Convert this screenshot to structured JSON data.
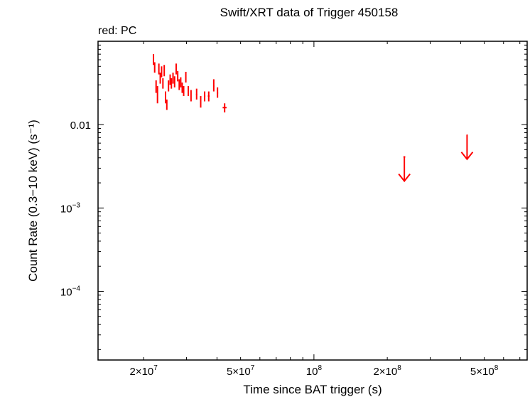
{
  "chart_data": {
    "type": "scatter",
    "title": "Swift/XRT data of Trigger 450158",
    "subtitle": "red: PC",
    "xlabel": "Time since BAT trigger (s)",
    "ylabel": "Count Rate (0.3−10 keV) (s⁻¹)",
    "x_scale": "log",
    "y_scale": "log",
    "xlim": [
      13000000,
      750000000
    ],
    "ylim": [
      1.5e-05,
      0.1
    ],
    "grid": false,
    "colors": {
      "series": "#ff0000",
      "axes": "#000000"
    },
    "x_ticks": [
      {
        "value": 20000000,
        "mantissa": "2×10",
        "exp": "7"
      },
      {
        "value": 50000000,
        "mantissa": "5×10",
        "exp": "7"
      },
      {
        "value": 100000000,
        "mantissa": "10",
        "exp": "8"
      },
      {
        "value": 200000000,
        "mantissa": "2×10",
        "exp": "8"
      },
      {
        "value": 500000000,
        "mantissa": "5×10",
        "exp": "8"
      }
    ],
    "y_ticks": [
      {
        "value": 0.01,
        "mantissa": "0.01",
        "exp": ""
      },
      {
        "value": 0.001,
        "mantissa": "10",
        "exp": "−3"
      },
      {
        "value": 0.0001,
        "mantissa": "10",
        "exp": "−4"
      }
    ],
    "series": [
      {
        "name": "PC",
        "points": [
          {
            "x": 21950000,
            "y": 0.058,
            "xerr": 80000,
            "y_lo": 0.052,
            "y_hi": 0.07
          },
          {
            "x": 22200000,
            "y": 0.048,
            "xerr": 80000,
            "y_lo": 0.042,
            "y_hi": 0.056
          },
          {
            "x": 22500000,
            "y": 0.028,
            "xerr": 80000,
            "y_lo": 0.024,
            "y_hi": 0.034
          },
          {
            "x": 22800000,
            "y": 0.024,
            "xerr": 80000,
            "y_lo": 0.018,
            "y_hi": 0.029
          },
          {
            "x": 23100000,
            "y": 0.046,
            "xerr": 80000,
            "y_lo": 0.04,
            "y_hi": 0.054
          },
          {
            "x": 23400000,
            "y": 0.036,
            "xerr": 80000,
            "y_lo": 0.031,
            "y_hi": 0.042
          },
          {
            "x": 23700000,
            "y": 0.043,
            "xerr": 80000,
            "y_lo": 0.037,
            "y_hi": 0.05
          },
          {
            "x": 24000000,
            "y": 0.031,
            "xerr": 80000,
            "y_lo": 0.027,
            "y_hi": 0.036
          },
          {
            "x": 24300000,
            "y": 0.044,
            "xerr": 80000,
            "y_lo": 0.038,
            "y_hi": 0.052
          },
          {
            "x": 24600000,
            "y": 0.021,
            "xerr": 80000,
            "y_lo": 0.018,
            "y_hi": 0.025
          },
          {
            "x": 24900000,
            "y": 0.017,
            "xerr": 80000,
            "y_lo": 0.015,
            "y_hi": 0.02
          },
          {
            "x": 25300000,
            "y": 0.029,
            "xerr": 80000,
            "y_lo": 0.025,
            "y_hi": 0.034
          },
          {
            "x": 25700000,
            "y": 0.035,
            "xerr": 80000,
            "y_lo": 0.03,
            "y_hi": 0.04
          },
          {
            "x": 26000000,
            "y": 0.031,
            "xerr": 80000,
            "y_lo": 0.027,
            "y_hi": 0.036
          },
          {
            "x": 26400000,
            "y": 0.036,
            "xerr": 80000,
            "y_lo": 0.031,
            "y_hi": 0.042
          },
          {
            "x": 26800000,
            "y": 0.033,
            "xerr": 80000,
            "y_lo": 0.028,
            "y_hi": 0.038
          },
          {
            "x": 27200000,
            "y": 0.046,
            "xerr": 80000,
            "y_lo": 0.04,
            "y_hi": 0.054
          },
          {
            "x": 27600000,
            "y": 0.038,
            "xerr": 80000,
            "y_lo": 0.033,
            "y_hi": 0.044
          },
          {
            "x": 28000000,
            "y": 0.03,
            "xerr": 80000,
            "y_lo": 0.026,
            "y_hi": 0.035
          },
          {
            "x": 28400000,
            "y": 0.032,
            "xerr": 80000,
            "y_lo": 0.028,
            "y_hi": 0.037
          },
          {
            "x": 28800000,
            "y": 0.028,
            "xerr": 80000,
            "y_lo": 0.024,
            "y_hi": 0.032
          },
          {
            "x": 29200000,
            "y": 0.025,
            "xerr": 80000,
            "y_lo": 0.022,
            "y_hi": 0.029
          },
          {
            "x": 29800000,
            "y": 0.037,
            "xerr": 80000,
            "y_lo": 0.032,
            "y_hi": 0.043
          },
          {
            "x": 30500000,
            "y": 0.025,
            "xerr": 80000,
            "y_lo": 0.022,
            "y_hi": 0.029
          },
          {
            "x": 31300000,
            "y": 0.022,
            "xerr": 80000,
            "y_lo": 0.019,
            "y_hi": 0.026
          },
          {
            "x": 33000000,
            "y": 0.023,
            "xerr": 200000,
            "y_lo": 0.02,
            "y_hi": 0.027
          },
          {
            "x": 34300000,
            "y": 0.019,
            "xerr": 200000,
            "y_lo": 0.016,
            "y_hi": 0.022
          },
          {
            "x": 35600000,
            "y": 0.022,
            "xerr": 250000,
            "y_lo": 0.019,
            "y_hi": 0.025
          },
          {
            "x": 37000000,
            "y": 0.022,
            "xerr": 300000,
            "y_lo": 0.019,
            "y_hi": 0.025
          },
          {
            "x": 38800000,
            "y": 0.029,
            "xerr": 200000,
            "y_lo": 0.025,
            "y_hi": 0.035
          },
          {
            "x": 40200000,
            "y": 0.024,
            "xerr": 250000,
            "y_lo": 0.021,
            "y_hi": 0.028
          },
          {
            "x": 43000000,
            "y": 0.016,
            "xerr": 800000,
            "y_lo": 0.014,
            "y_hi": 0.018
          }
        ],
        "upper_limits": [
          {
            "x": 235000000,
            "y": 0.0041,
            "xerr": 2000000
          },
          {
            "x": 425000000,
            "y": 0.0075,
            "xerr": 2000000
          }
        ]
      }
    ]
  }
}
